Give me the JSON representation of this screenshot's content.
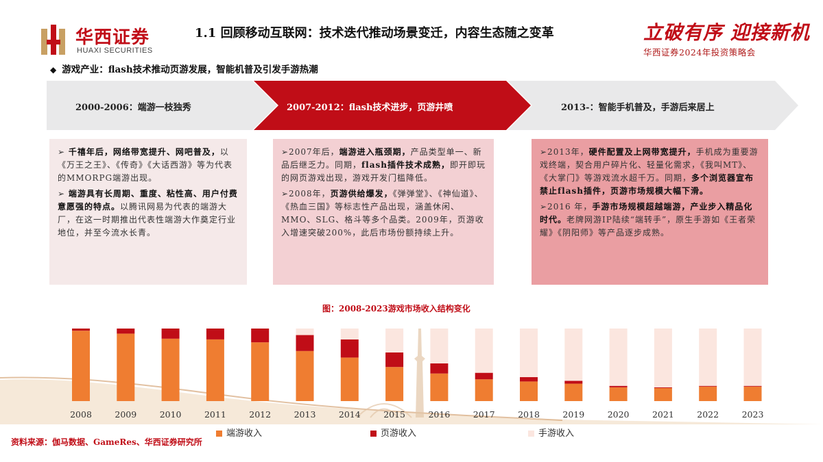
{
  "header": {
    "logo_cn": "华西证券",
    "logo_en": "HUAXI SECURITIES",
    "title": "1.1 回顾移动互联网：技术迭代推动场景变迁，内容生态随之变革",
    "slogan": "立破有序 迎接新机",
    "subslogan": "华西证券2024年投资策略会"
  },
  "section": {
    "bullet": "◆",
    "text": "游戏产业：flash技术推动页游发展，智能机普及引发手游热潮"
  },
  "timeline": [
    {
      "label": "2000-2006：端游一枝独秀"
    },
    {
      "label": "2007-2012：flash技术进步，页游井喷"
    },
    {
      "label": "2013-：智能手机普及，手游后来居上"
    }
  ],
  "boxes": {
    "b1": [
      {
        "pre": "➢ ",
        "bold": "千禧年后，网络带宽提升、网吧普及，",
        "rest": "以《万王之王》、《传奇》《大话西游》等为代表的MMORPG端游出现。"
      },
      {
        "pre": "➢ ",
        "bold": "端游具有长周期、重度、粘性高、用户付费意愿强的特点。",
        "rest": "以腾讯网易为代表的端游大厂，在这一时期推出代表性端游大作奠定行业地位，并至今流水长青。"
      }
    ],
    "b2": [
      {
        "pre": "➢2007年后，",
        "bold": "端游进入瓶颈期，",
        "rest": "产品类型单一、新品后继乏力。同期，",
        "bold2": "flash插件技术成熟，",
        "rest2": "即开即玩的网页游戏出现，游戏开发门槛降低。"
      },
      {
        "pre": "➢2008年，",
        "bold": "页游供给爆发，",
        "rest": "《弹弹堂》、《神仙道》、《热血三国》等标志性产品出现，涵盖休闲、MMO、SLG、格斗等多个品类。2009年，页游收入增速突破200%，此后市场份额持续上升。",
        "bold2": "",
        "rest2": ""
      }
    ],
    "b3": [
      {
        "pre": "➢2013年，",
        "bold": "硬件配置及上网带宽提升，",
        "rest": "手机成为重要游戏终端，契合用户碎片化、轻量化需求，《我叫MT》、《大掌门》等游戏流水超千万。同期，",
        "bold2": "多个浏览器宣布禁止flash插件，页游市场规模大幅下滑。",
        "rest2": ""
      },
      {
        "pre": "➢2016 年，",
        "bold": "手游市场规模超越端游，产业步入精品化时代。",
        "rest": "老牌网游IP陆续“端转手”，原生手游如《王者荣耀》《阴阳师》等产品逐步成熟。",
        "bold2": "",
        "rest2": ""
      }
    ]
  },
  "chart_data": {
    "type": "bar",
    "stacked": true,
    "title": "图：2008-2023游戏市场收入结构变化",
    "categories": [
      "2008",
      "2009",
      "2010",
      "2011",
      "2012",
      "2013",
      "2014",
      "2015",
      "2016",
      "2017",
      "2018",
      "2019",
      "2020",
      "2021",
      "2022",
      "2023"
    ],
    "series": [
      {
        "name": "端游收入",
        "color": "#ef7d31",
        "values": [
          0.97,
          0.93,
          0.86,
          0.85,
          0.81,
          0.69,
          0.6,
          0.47,
          0.38,
          0.3,
          0.27,
          0.24,
          0.19,
          0.18,
          0.2,
          0.2
        ]
      },
      {
        "name": "页游收入",
        "color": "#c00d17",
        "values": [
          0.03,
          0.07,
          0.14,
          0.15,
          0.19,
          0.22,
          0.25,
          0.2,
          0.14,
          0.09,
          0.06,
          0.04,
          0.02,
          0.01,
          0.01,
          0.01
        ]
      },
      {
        "name": "手游收入",
        "color": "#fbe6df",
        "values": [
          0.0,
          0.0,
          0.0,
          0.0,
          0.0,
          0.09,
          0.15,
          0.33,
          0.48,
          0.61,
          0.67,
          0.72,
          0.79,
          0.81,
          0.79,
          0.79
        ]
      }
    ],
    "ylim": [
      0,
      1
    ],
    "legend": "bottom"
  },
  "source": "资料来源：伽马数据、GameRes、华西证券研究所"
}
